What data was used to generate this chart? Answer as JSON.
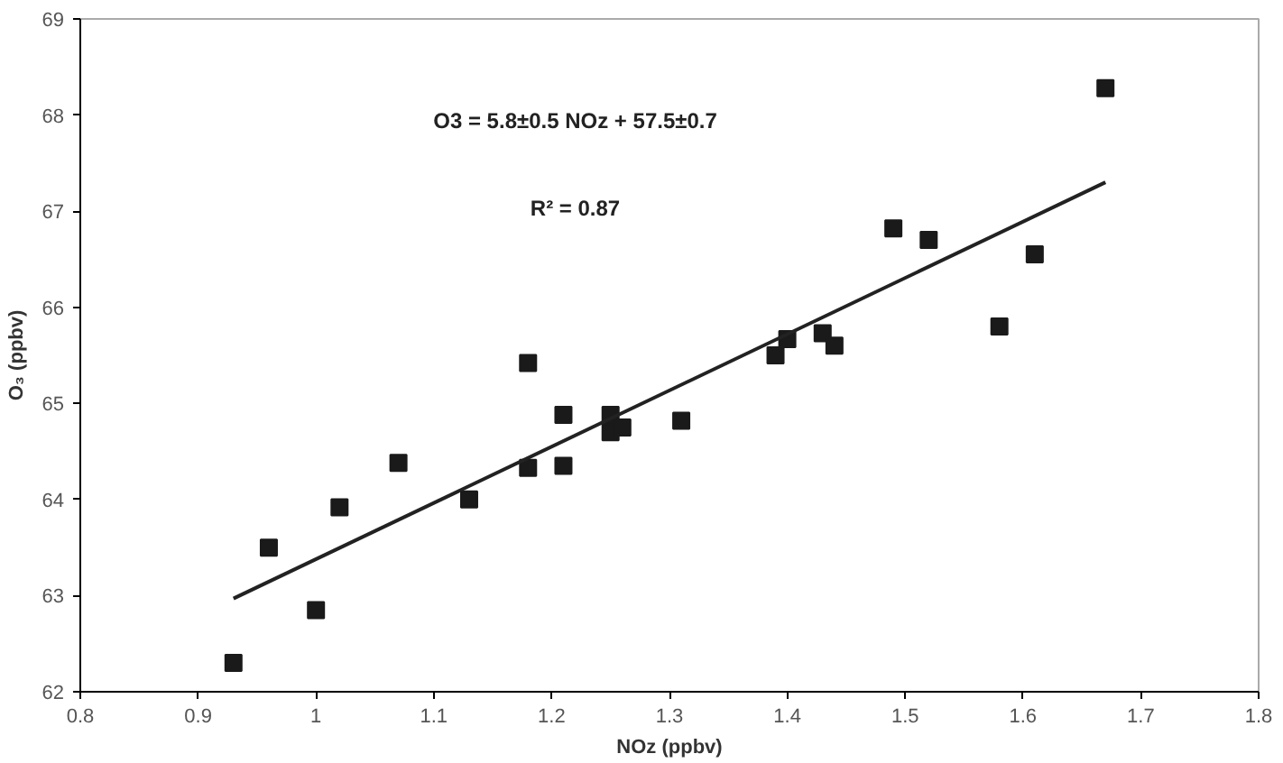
{
  "chart_data": {
    "type": "scatter",
    "xlabel": "NOz (ppbv)",
    "ylabel": "O₃ (ppbv)",
    "annotations": [
      "O3 = 5.8±0.5 NOz + 57.5±0.7",
      "R² = 0.87"
    ],
    "xlim": [
      0.8,
      1.8
    ],
    "xticks": [
      0.8,
      0.9,
      1,
      1.1,
      1.2,
      1.3,
      1.4,
      1.5,
      1.6,
      1.7,
      1.8
    ],
    "ylim": [
      62,
      69
    ],
    "yticks": [
      62,
      63,
      64,
      65,
      66,
      67,
      68,
      69
    ],
    "grid": false,
    "marker": "square",
    "series": [
      {
        "color": "#1a1a1a",
        "x": [
          0.93,
          0.96,
          1.0,
          1.02,
          1.07,
          1.13,
          1.18,
          1.18,
          1.21,
          1.21,
          1.25,
          1.25,
          1.26,
          1.31,
          1.39,
          1.4,
          1.43,
          1.44,
          1.49,
          1.52,
          1.58,
          1.61,
          1.67
        ],
        "values": [
          62.3,
          63.5,
          62.85,
          63.92,
          64.38,
          64.0,
          64.33,
          65.42,
          64.35,
          64.88,
          64.88,
          64.7,
          64.75,
          64.82,
          65.5,
          65.67,
          65.73,
          65.6,
          66.82,
          66.7,
          65.8,
          66.55,
          68.28
        ]
      },
      {
        "type": "line",
        "color": "#222222",
        "line_style": "solid",
        "marker": "none",
        "x": [
          0.93,
          1.67
        ],
        "values": [
          62.97,
          67.3
        ]
      }
    ]
  }
}
